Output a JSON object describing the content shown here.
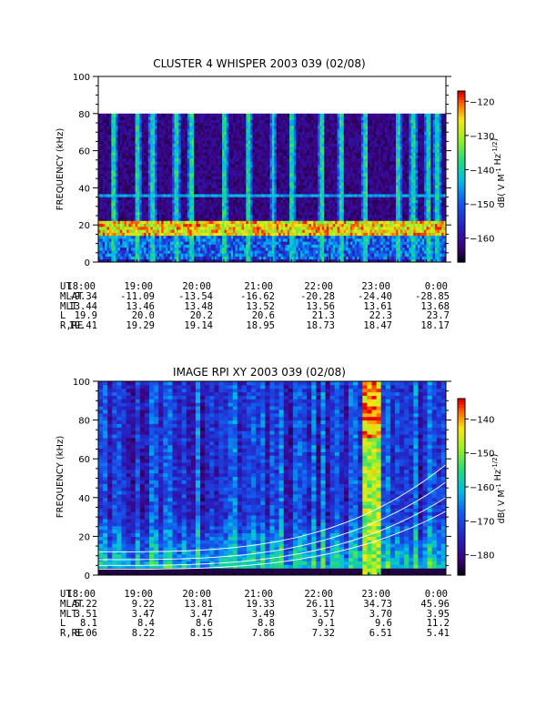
{
  "chart_data": [
    {
      "type": "heatmap",
      "title": "CLUSTER 4 WHISPER 2003 039 (02/08)",
      "ylabel": "FREQUENCY (kHz)",
      "ylim": [
        0,
        100
      ],
      "y_ticks": [
        "0",
        "20",
        "40",
        "60",
        "80",
        "100"
      ],
      "data_ylim": [
        0,
        80
      ],
      "colorbar": {
        "label": "dB( V M⁻¹ Hz⁻¹ᐟ²)",
        "label_parts": [
          "dB( V M",
          "-1",
          " Hz",
          "-1/2",
          ")"
        ],
        "range": [
          -167,
          -117
        ],
        "ticks": [
          "-120",
          "-130",
          "-140",
          "-150",
          "-160"
        ]
      },
      "features": {
        "background_level_db": -162,
        "band_freq_khz": [
          14,
          22
        ],
        "band_level_db": -127,
        "line_freq_khz": 36,
        "line_level_db": -145,
        "spike_times": [
          "18:15",
          "18:40",
          "18:55",
          "19:20",
          "19:35",
          "20:10",
          "20:35",
          "21:00",
          "21:20",
          "21:50",
          "22:10",
          "22:35",
          "23:10",
          "23:25",
          "23:40",
          "23:50"
        ]
      },
      "ephemeris": {
        "labels": [
          "UT",
          "MLAT",
          "MLT",
          "L",
          "R,RE"
        ],
        "columns": [
          {
            "UT": "18:00",
            "MLAT": "-9.34",
            "MLT": "13.44",
            "L": "19.9",
            "R,RE": "19.41"
          },
          {
            "UT": "19:00",
            "MLAT": "-11.09",
            "MLT": "13.46",
            "L": "20.0",
            "R,RE": "19.29"
          },
          {
            "UT": "20:00",
            "MLAT": "-13.54",
            "MLT": "13.48",
            "L": "20.2",
            "R,RE": "19.14"
          },
          {
            "UT": "21:00",
            "MLAT": "-16.62",
            "MLT": "13.52",
            "L": "20.6",
            "R,RE": "18.95"
          },
          {
            "UT": "22:00",
            "MLAT": "-20.28",
            "MLT": "13.56",
            "L": "21.3",
            "R,RE": "18.73"
          },
          {
            "UT": "23:00",
            "MLAT": "-24.40",
            "MLT": "13.61",
            "L": "22.3",
            "R,RE": "18.47"
          },
          {
            "UT": "0:00",
            "MLAT": "-28.85",
            "MLT": "13.68",
            "L": "23.7",
            "R,RE": "18.17"
          }
        ]
      }
    },
    {
      "type": "heatmap",
      "title": "IMAGE RPI XY 2003 039 (02/08)",
      "ylabel": "FREQUENCY (kHz)",
      "ylim": [
        0,
        100
      ],
      "y_ticks": [
        "0",
        "20",
        "40",
        "60",
        "80",
        "100"
      ],
      "data_ylim": [
        0,
        100
      ],
      "colorbar": {
        "label": "dB( V M⁻¹ Hz⁻¹ᐟ²)",
        "label_parts": [
          "dB( V M",
          "-1",
          " Hz",
          "-1/2",
          ")"
        ],
        "range": [
          -186,
          -134
        ],
        "ticks": [
          "-140",
          "-150",
          "-160",
          "-170",
          "-180"
        ]
      },
      "features": {
        "background_level_db": -172,
        "hot_times": [
          "22:35",
          "22:45"
        ],
        "white_curves": "plasma cutoff traces rising toward 0:00"
      },
      "ephemeris": {
        "labels": [
          "UT",
          "MLAT",
          "MLT",
          "L",
          "R,RE"
        ],
        "columns": [
          {
            "UT": "18:00",
            "MLAT": "5.22",
            "MLT": "3.51",
            "L": "8.1",
            "R,RE": "8.06"
          },
          {
            "UT": "19:00",
            "MLAT": "9.22",
            "MLT": "3.47",
            "L": "8.4",
            "R,RE": "8.22"
          },
          {
            "UT": "20:00",
            "MLAT": "13.81",
            "MLT": "3.47",
            "L": "8.6",
            "R,RE": "8.15"
          },
          {
            "UT": "21:00",
            "MLAT": "19.33",
            "MLT": "3.49",
            "L": "8.8",
            "R,RE": "7.86"
          },
          {
            "UT": "22:00",
            "MLAT": "26.11",
            "MLT": "3.57",
            "L": "9.1",
            "R,RE": "7.32"
          },
          {
            "UT": "23:00",
            "MLAT": "34.73",
            "MLT": "3.70",
            "L": "9.6",
            "R,RE": "6.51"
          },
          {
            "UT": "0:00",
            "MLAT": "45.96",
            "MLT": "3.95",
            "L": "11.2",
            "R,RE": "5.41"
          }
        ]
      }
    }
  ]
}
